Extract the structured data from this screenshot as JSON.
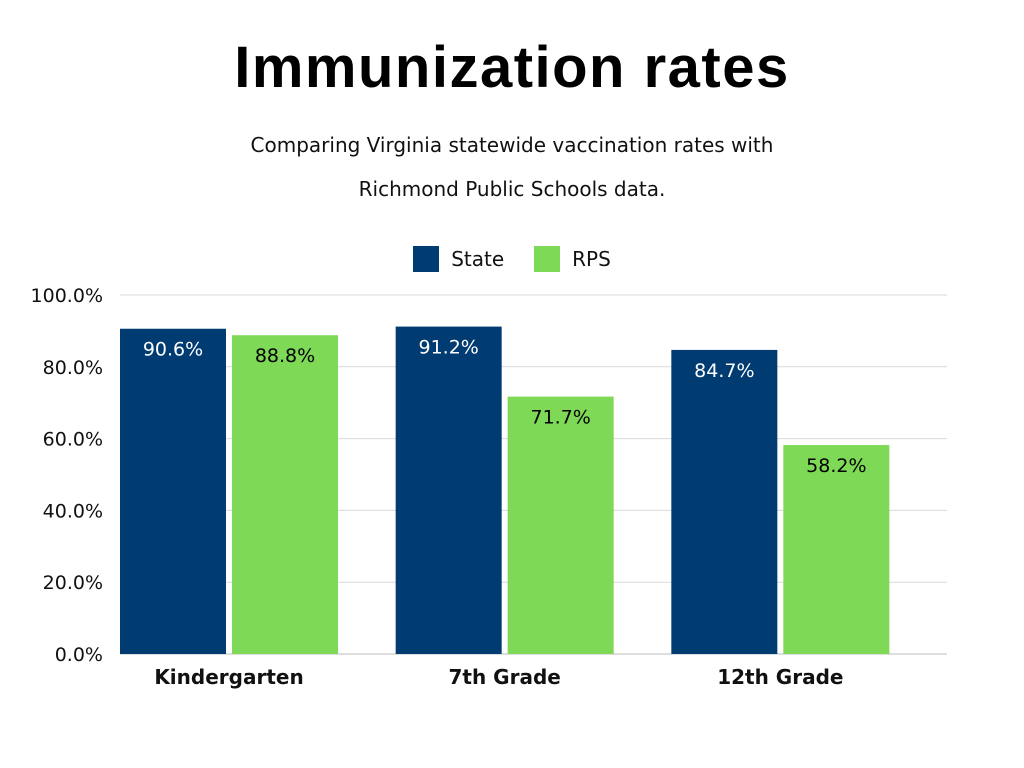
{
  "title": "Immunization rates",
  "subtitle_line1": "Comparing Virginia statewide vaccination rates with",
  "subtitle_line2": "Richmond Public Schools data.",
  "colors": {
    "state": "#003b71",
    "rps": "#7ed957",
    "grid": "#d9d9d9",
    "text": "#111111"
  },
  "chart_data": {
    "type": "bar",
    "categories": [
      "Kindergarten",
      "7th Grade",
      "12th Grade"
    ],
    "series": [
      {
        "name": "State",
        "values": [
          90.6,
          91.2,
          84.7
        ],
        "labels": [
          "90.6%",
          "91.2%",
          "84.7%"
        ]
      },
      {
        "name": "RPS",
        "values": [
          88.8,
          71.7,
          58.2
        ],
        "labels": [
          "88.8%",
          "71.7%",
          "58.2%"
        ]
      }
    ],
    "yticks": [
      0,
      20,
      40,
      60,
      80,
      100
    ],
    "ytick_labels": [
      "0.0%",
      "20.0%",
      "40.0%",
      "60.0%",
      "80.0%",
      "100.0%"
    ],
    "ylim": [
      0,
      100
    ],
    "grid": true,
    "legend": "top-center",
    "xlabel": "",
    "ylabel": ""
  }
}
